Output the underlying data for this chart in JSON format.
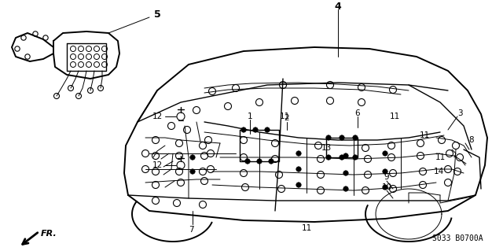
{
  "bg_color": "#ffffff",
  "line_color": "#000000",
  "fig_width": 6.4,
  "fig_height": 3.19,
  "dpi": 100,
  "part_number": "S033 B0700A",
  "fr_label": "FR."
}
